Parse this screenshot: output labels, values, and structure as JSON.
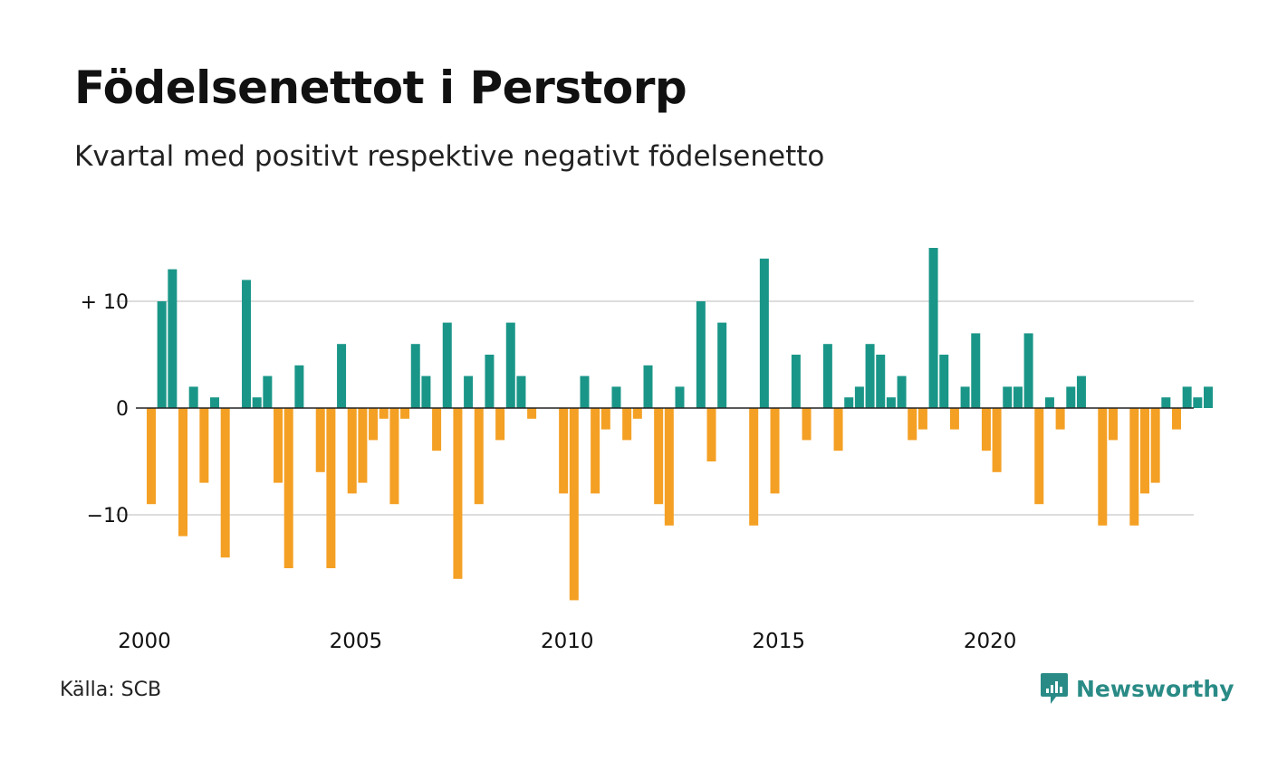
{
  "header": {
    "title": "Födelsenettot i Perstorp",
    "subtitle": "Kvartal med positivt respektive negativt födelsenetto"
  },
  "footer": {
    "source": "Källa: SCB",
    "brand": "Newsworthy",
    "brand_icon": "newsworthy-logo-icon"
  },
  "colors": {
    "positive": "#1a9688",
    "negative": "#f4a024",
    "grid": "#dddddd",
    "axis": "#222222",
    "brand": "#2a8b86"
  },
  "chart_data": {
    "type": "bar",
    "title": "Födelsenettot i Perstorp",
    "subtitle": "Kvartal med positivt respektive negativt födelsenetto",
    "xlabel": "",
    "ylabel": "",
    "x_start_year": 2000,
    "periods_per_year": 4,
    "x_ticks": [
      2000,
      2005,
      2010,
      2015,
      2020
    ],
    "x_tick_labels": [
      "2000",
      "2005",
      "2010",
      "2015",
      "2020"
    ],
    "y_ticks": [
      10,
      0,
      -10
    ],
    "y_tick_labels": [
      "+ 10",
      "0",
      "−10"
    ],
    "ylim": [
      -20,
      16
    ],
    "grid": true,
    "legend": "none",
    "values": [
      -9,
      10,
      13,
      -12,
      2,
      -7,
      1,
      -14,
      0,
      12,
      1,
      3,
      -7,
      -15,
      4,
      0,
      -6,
      -15,
      6,
      -8,
      -7,
      -3,
      -1,
      -9,
      -1,
      6,
      3,
      -4,
      8,
      -16,
      3,
      -9,
      5,
      -3,
      8,
      3,
      -1,
      0,
      0,
      -8,
      -18,
      3,
      -8,
      -2,
      2,
      -3,
      -1,
      4,
      -9,
      -11,
      2,
      0,
      10,
      -5,
      8,
      0,
      0,
      -11,
      14,
      -8,
      0,
      5,
      -3,
      0,
      6,
      -4,
      1,
      2,
      6,
      5,
      1,
      3,
      -3,
      -2,
      15,
      5,
      -2,
      2,
      7,
      -4,
      -6,
      2,
      2,
      7,
      -9,
      1,
      -2,
      2,
      3,
      0,
      -11,
      -3,
      0,
      -11,
      -8,
      -7,
      1,
      -2,
      2,
      1,
      2
    ]
  }
}
